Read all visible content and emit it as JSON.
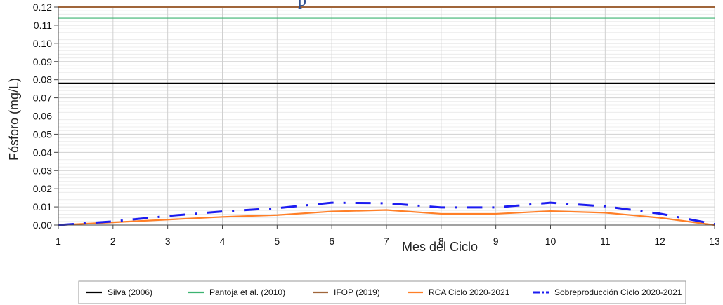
{
  "chart_data": {
    "type": "line",
    "title": "",
    "title_fragment": "p",
    "xlabel": "Mes del Ciclo",
    "ylabel": "Fósforo (mg/L)",
    "xlim": [
      1,
      13
    ],
    "ylim": [
      0,
      0.12
    ],
    "x_ticks": [
      "1",
      "2",
      "3",
      "4",
      "5",
      "6",
      "7",
      "8",
      "9",
      "10",
      "11",
      "12",
      "13"
    ],
    "y_ticks": [
      "0.00",
      "0.01",
      "0.02",
      "0.03",
      "0.04",
      "0.05",
      "0.06",
      "0.07",
      "0.08",
      "0.09",
      "0.10",
      "0.11",
      "0.12"
    ],
    "grid": true,
    "legend_position": "bottom",
    "x": [
      1,
      2,
      3,
      4,
      5,
      6,
      7,
      8,
      9,
      10,
      11,
      12,
      13
    ],
    "series": [
      {
        "name": "Silva (2006)",
        "color": "#000000",
        "style": "solid",
        "values": [
          0.078,
          0.078,
          0.078,
          0.078,
          0.078,
          0.078,
          0.078,
          0.078,
          0.078,
          0.078,
          0.078,
          0.078,
          0.078
        ]
      },
      {
        "name": "Pantoja et al. (2010)",
        "color": "#3cb371",
        "style": "solid",
        "values": [
          0.114,
          0.114,
          0.114,
          0.114,
          0.114,
          0.114,
          0.114,
          0.114,
          0.114,
          0.114,
          0.114,
          0.114,
          0.114
        ]
      },
      {
        "name": "IFOP (2019)",
        "color": "#a0653a",
        "style": "solid",
        "values": [
          0.12,
          0.12,
          0.12,
          0.12,
          0.12,
          0.12,
          0.12,
          0.12,
          0.12,
          0.12,
          0.12,
          0.12,
          0.12
        ]
      },
      {
        "name": "RCA Ciclo 2020-2021",
        "color": "#ff7f27",
        "style": "solid",
        "values": [
          0.0,
          0.0015,
          0.003,
          0.0045,
          0.0055,
          0.0075,
          0.0083,
          0.0062,
          0.0062,
          0.0077,
          0.0068,
          0.004,
          0.0
        ]
      },
      {
        "name": "Sobreproducción Ciclo 2020-2021",
        "color": "#1c1cf0",
        "style": "dashdot",
        "values": [
          0.0,
          0.002,
          0.005,
          0.0075,
          0.0093,
          0.0123,
          0.012,
          0.0097,
          0.0097,
          0.0123,
          0.0103,
          0.0063,
          0.0005
        ]
      }
    ]
  }
}
